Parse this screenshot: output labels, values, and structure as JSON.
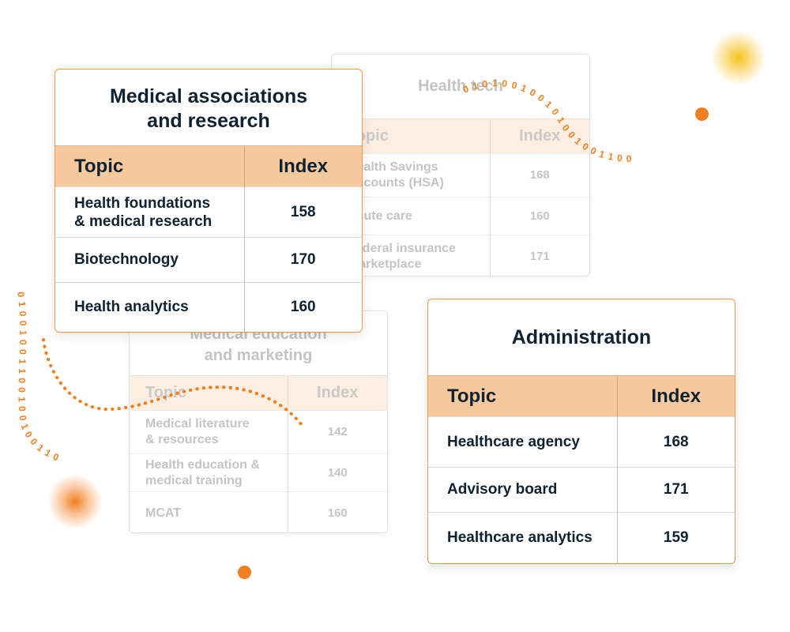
{
  "colors": {
    "accent": "#f07f1f",
    "header_bg": "#f8c99c",
    "faded_header_bg": "#fdeee2"
  },
  "binary_strings": {
    "top_right": "0 1 0 1 0 0 1 0 0 1 0 1 0 0 1 0 0 1 1 0 0",
    "left": "0 1 0 0 1 0 0 1 1 0 0 1 0 0 1 0 0 1 1 0"
  },
  "cards": {
    "health_tech": {
      "title": "Health tech",
      "header": {
        "topic": "Topic",
        "index": "Index"
      },
      "rows": [
        {
          "topic": "Health Savings Accounts (HSA)",
          "index": "168"
        },
        {
          "topic": "Acute care",
          "index": "160"
        },
        {
          "topic": "Federal insurance marketplace",
          "index": "171"
        }
      ]
    },
    "medical_associations": {
      "title": "Medical associations\nand research",
      "header": {
        "topic": "Topic",
        "index": "Index"
      },
      "rows": [
        {
          "topic": "Health foundations\n& medical research",
          "index": "158"
        },
        {
          "topic": "Biotechnology",
          "index": "170"
        },
        {
          "topic": "Health analytics",
          "index": "160"
        }
      ]
    },
    "medical_education": {
      "title": "Medical education\nand marketing",
      "header": {
        "topic": "Topic",
        "index": "Index"
      },
      "rows": [
        {
          "topic": "Medical literature\n& resources",
          "index": "142"
        },
        {
          "topic": "Health education &\nmedical training",
          "index": "140"
        },
        {
          "topic": "MCAT",
          "index": "160"
        }
      ]
    },
    "administration": {
      "title": "Administration",
      "header": {
        "topic": "Topic",
        "index": "Index"
      },
      "rows": [
        {
          "topic": "Healthcare agency",
          "index": "168"
        },
        {
          "topic": "Advisory board",
          "index": "171"
        },
        {
          "topic": "Healthcare analytics",
          "index": "159"
        }
      ]
    }
  }
}
